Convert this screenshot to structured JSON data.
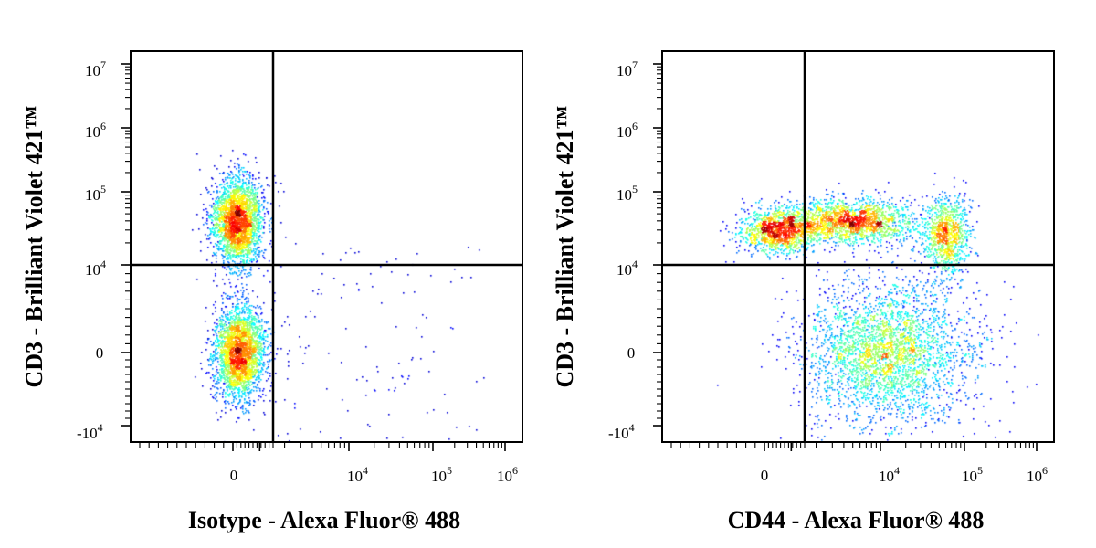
{
  "chart_data": [
    {
      "type": "scatter",
      "xlabel": "Isotype - Alexa Fluor® 488",
      "ylabel": "CD3 - Brilliant Violet 421™",
      "x_ticks": [
        {
          "value": 0,
          "base": "0",
          "exp": ""
        },
        {
          "value": 10000,
          "base": "10",
          "exp": "4"
        },
        {
          "value": 100000,
          "base": "10",
          "exp": "5"
        },
        {
          "value": 1000000,
          "base": "10",
          "exp": "6"
        }
      ],
      "y_ticks": [
        {
          "value": -10000,
          "base": "-10",
          "exp": "4"
        },
        {
          "value": 0,
          "base": "0",
          "exp": ""
        },
        {
          "value": 10000,
          "base": "10",
          "exp": "4"
        },
        {
          "value": 100000,
          "base": "10",
          "exp": "5"
        },
        {
          "value": 1000000,
          "base": "10",
          "exp": "6"
        },
        {
          "value": 10000000,
          "base": "10",
          "exp": "7"
        }
      ],
      "gate": {
        "x": 1500,
        "y": 10000
      },
      "grid": false,
      "populations": [
        {
          "x": 150,
          "y": 40000,
          "count": 2600
        },
        {
          "x": 200,
          "y": 0,
          "count": 2600
        }
      ]
    },
    {
      "type": "scatter",
      "xlabel": "CD44 - Alexa Fluor® 488",
      "ylabel": "CD3 - Brilliant Violet 421™",
      "x_ticks": [
        {
          "value": 0,
          "base": "0",
          "exp": ""
        },
        {
          "value": 10000,
          "base": "10",
          "exp": "4"
        },
        {
          "value": 100000,
          "base": "10",
          "exp": "5"
        },
        {
          "value": 1000000,
          "base": "10",
          "exp": "6"
        }
      ],
      "y_ticks": [
        {
          "value": -10000,
          "base": "-10",
          "exp": "4"
        },
        {
          "value": 0,
          "base": "0",
          "exp": ""
        },
        {
          "value": 10000,
          "base": "10",
          "exp": "4"
        },
        {
          "value": 100000,
          "base": "10",
          "exp": "5"
        },
        {
          "value": 1000000,
          "base": "10",
          "exp": "6"
        },
        {
          "value": 10000000,
          "base": "10",
          "exp": "7"
        }
      ],
      "gate": {
        "x": 1500,
        "y": 10000
      },
      "grid": false,
      "populations": [
        {
          "x": 500,
          "y": 30000,
          "count": 1200
        },
        {
          "x": 5000,
          "y": 40000,
          "count": 1800
        },
        {
          "x": 60000,
          "y": 25000,
          "count": 900
        },
        {
          "x": 12000,
          "y": 0,
          "count": 3000
        }
      ]
    }
  ]
}
